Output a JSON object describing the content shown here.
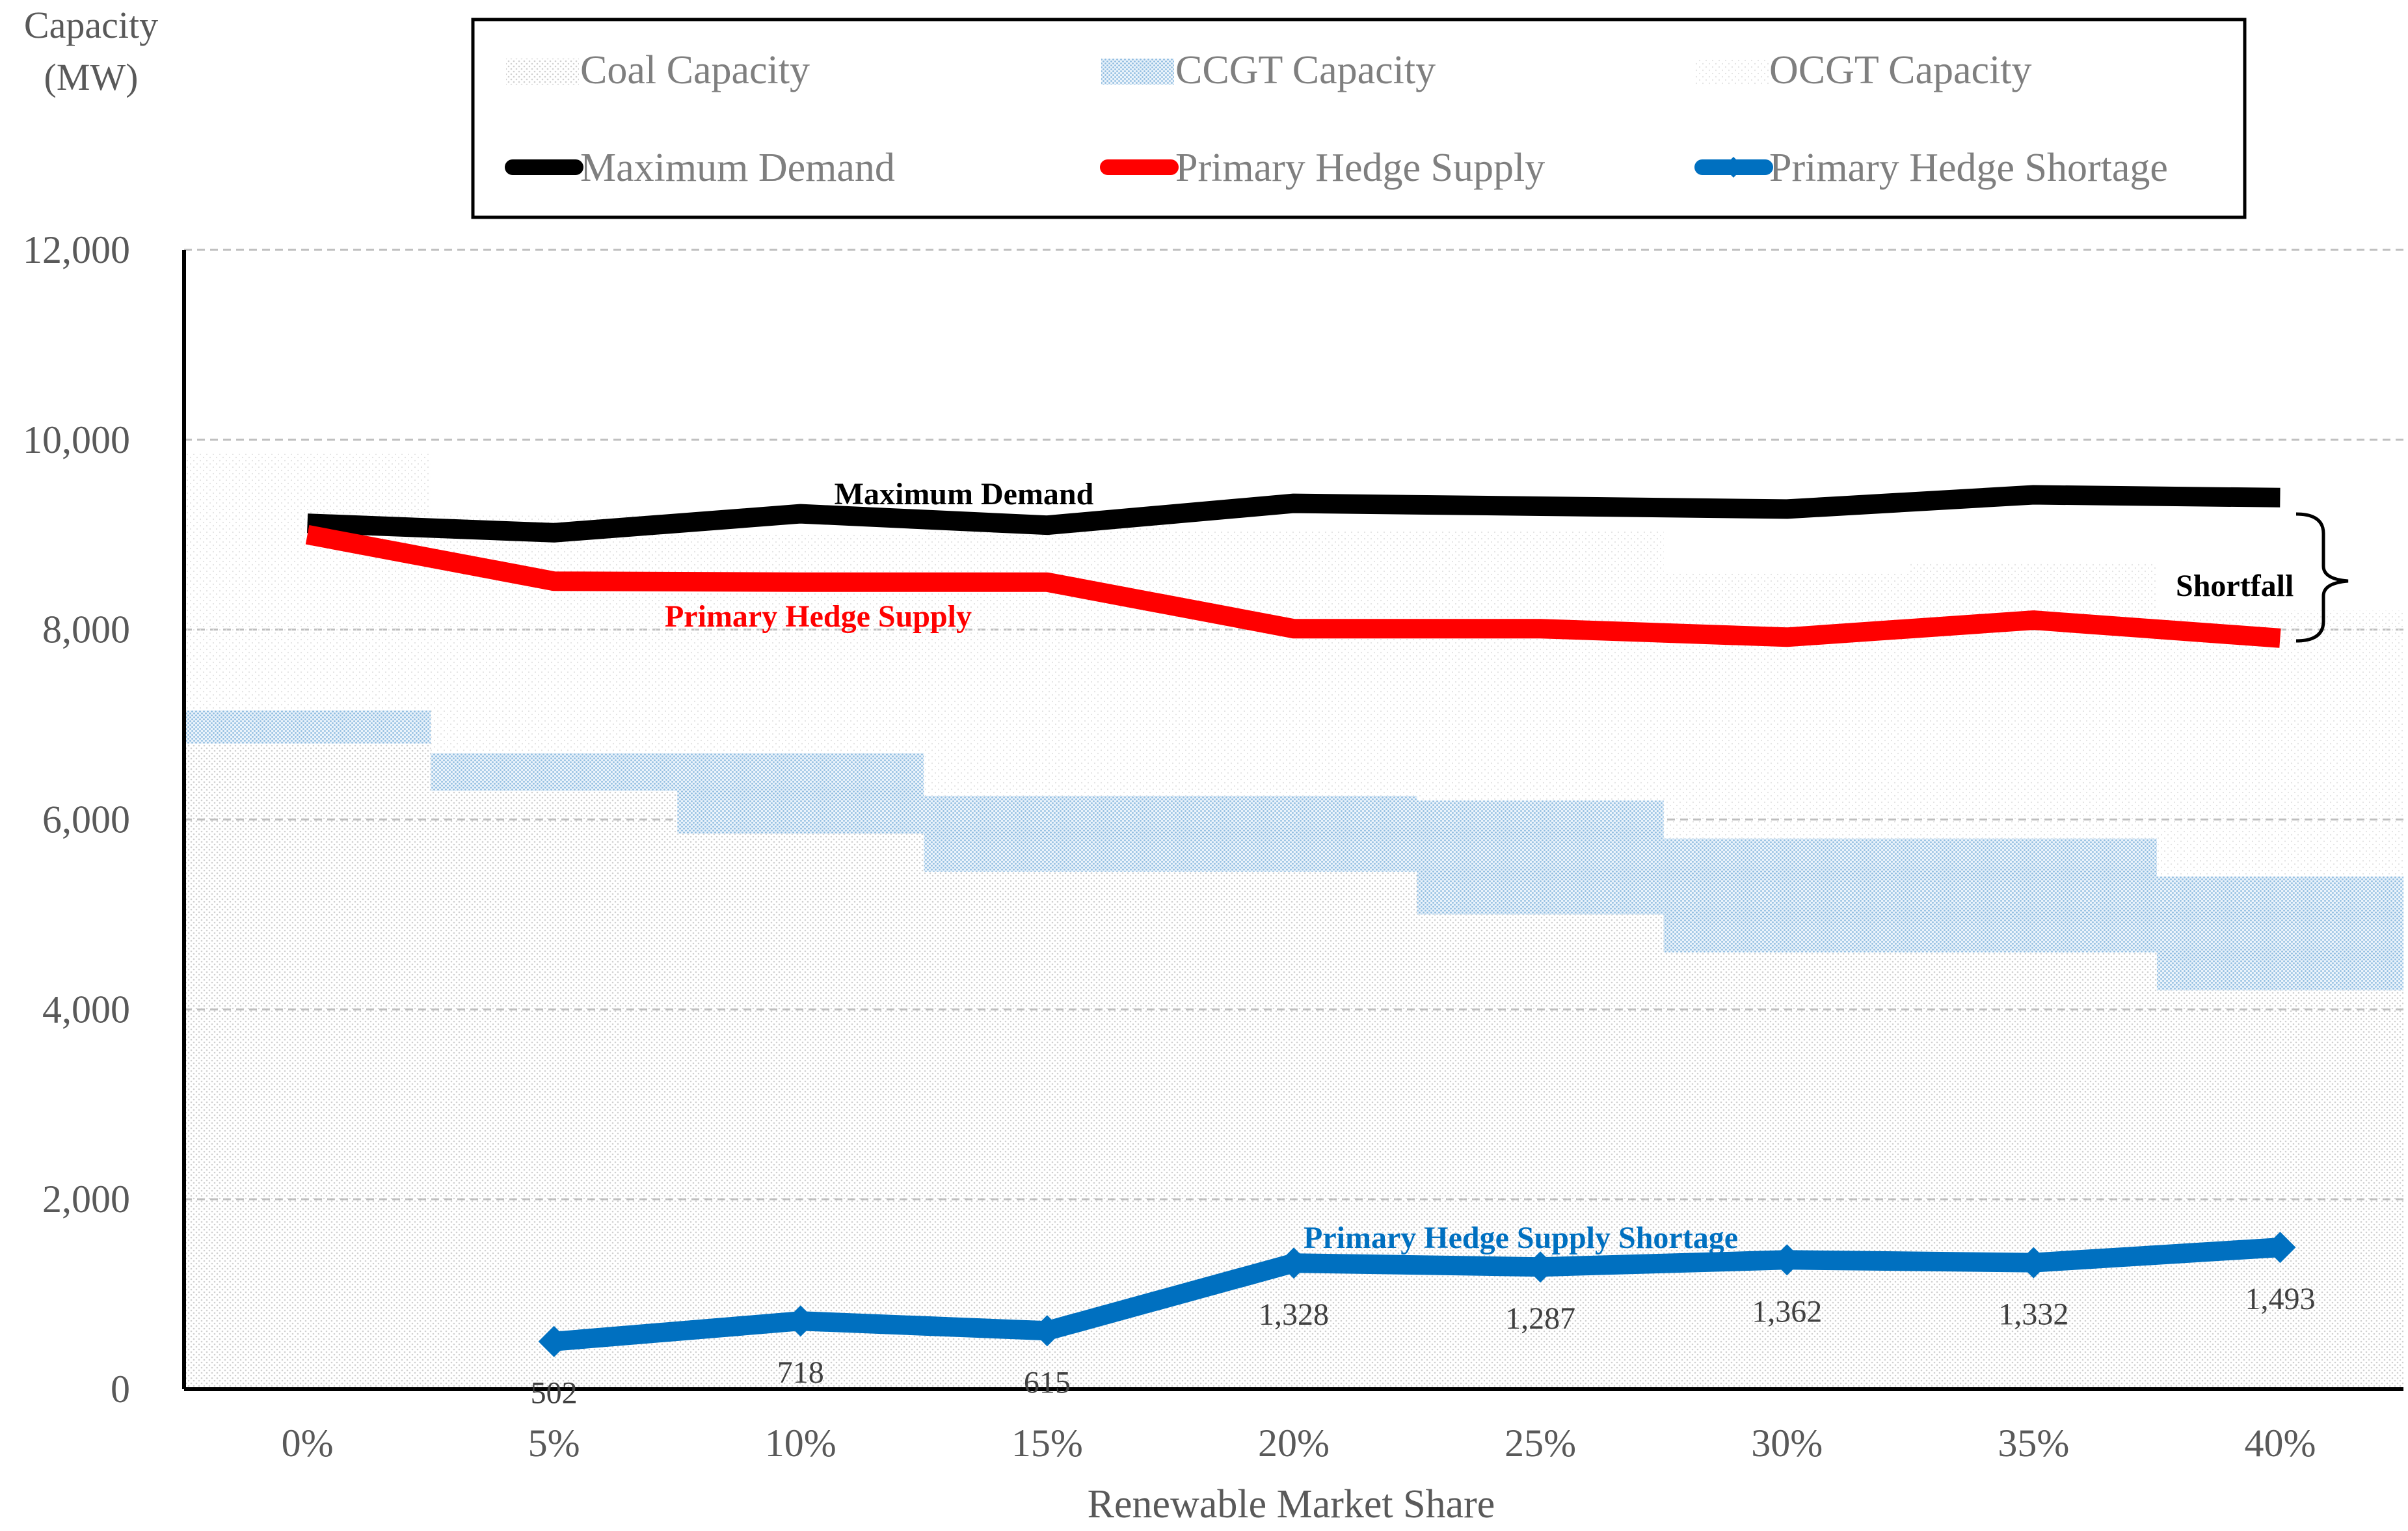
{
  "chart_data": {
    "type": "line",
    "title": "",
    "ylabel_lines": [
      "Capacity",
      "(MW)"
    ],
    "xlabel": "Renewable Market Share",
    "ylim": [
      0,
      12000
    ],
    "yticks": [
      0,
      2000,
      4000,
      6000,
      8000,
      10000,
      12000
    ],
    "ytick_labels": [
      "0",
      "2,000",
      "4,000",
      "6,000",
      "8,000",
      "10,000",
      "12,000"
    ],
    "categories": [
      "0%",
      "5%",
      "10%",
      "15%",
      "20%",
      "25%",
      "30%",
      "35%",
      "40%"
    ],
    "grid": true,
    "legend_position": "top",
    "legend": [
      "Coal Capacity",
      "CCGT Capacity",
      "OCGT Capacity",
      "Maximum Demand",
      "Primary Hedge Supply",
      "Primary Hedge Shortage"
    ],
    "stacked_bars": [
      {
        "name": "Coal Capacity",
        "values": [
          6800,
          6300,
          5850,
          5450,
          5450,
          5000,
          4600,
          4600,
          4200
        ]
      },
      {
        "name": "CCGT Capacity",
        "values": [
          350,
          400,
          850,
          800,
          800,
          1200,
          1200,
          1200,
          1200
        ]
      },
      {
        "name": "OCGT Capacity",
        "values": [
          2700,
          2500,
          2300,
          2850,
          2800,
          2850,
          2800,
          2900,
          2800
        ]
      }
    ],
    "series": [
      {
        "name": "Maximum Demand",
        "color": "#000000",
        "values": [
          9120,
          9020,
          9220,
          9100,
          9330,
          9300,
          9270,
          9420,
          9390
        ]
      },
      {
        "name": "Primary Hedge Supply",
        "color": "#ff0000",
        "values": [
          9000,
          8510,
          8500,
          8500,
          8010,
          8010,
          7920,
          8100,
          7910
        ]
      },
      {
        "name": "Primary Hedge Shortage",
        "color": "#0070c0",
        "values": [
          null,
          502,
          718,
          615,
          1328,
          1287,
          1362,
          1332,
          1493
        ]
      }
    ],
    "data_labels": [
      "502",
      "718",
      "615",
      "1,328",
      "1,287",
      "1,362",
      "1,332",
      "1,493"
    ],
    "annotations": {
      "max_demand": "Maximum Demand",
      "hedge_supply": "Primary Hedge Supply",
      "shortage": "Primary Hedge Supply Shortage",
      "shortfall": "Shortfall"
    },
    "colors": {
      "coal": "#d9d9d9",
      "ccgt": "#9dc3e6",
      "ocgt": "#ececec",
      "grid": "#bfbfbf",
      "axis_text": "#595959"
    }
  }
}
